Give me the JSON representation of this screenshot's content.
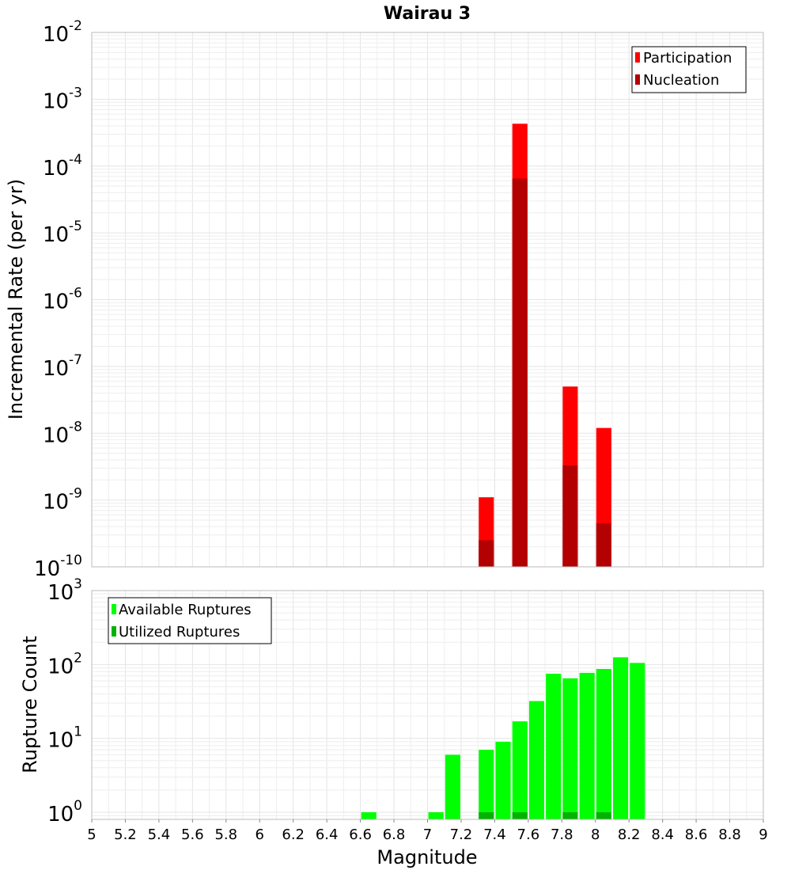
{
  "chart_data": [
    {
      "type": "bar",
      "title": "Wairau 3",
      "xlabel": "",
      "ylabel": "Incremental Rate (per yr)",
      "y_scale": "log",
      "ylim": [
        1e-10,
        0.01
      ],
      "y_ticks": [
        {
          "base": "10",
          "exp": "-2"
        },
        {
          "base": "10",
          "exp": "-3"
        },
        {
          "base": "10",
          "exp": "-4"
        },
        {
          "base": "10",
          "exp": "-5"
        },
        {
          "base": "10",
          "exp": "-6"
        },
        {
          "base": "10",
          "exp": "-7"
        },
        {
          "base": "10",
          "exp": "-8"
        },
        {
          "base": "10",
          "exp": "-9"
        },
        {
          "base": "10",
          "exp": "-10"
        }
      ],
      "xlim": [
        5,
        9
      ],
      "grid": true,
      "legend_position": "top-right",
      "series": [
        {
          "name": "Participation",
          "color": "#ff0000",
          "x": [
            7.35,
            7.55,
            7.85,
            8.05
          ],
          "values": [
            1.1e-09,
            0.00043,
            5e-08,
            1.2e-08
          ]
        },
        {
          "name": "Nucleation",
          "color": "#b30000",
          "x": [
            7.35,
            7.55,
            7.85,
            8.05
          ],
          "values": [
            2.5e-10,
            6.5e-05,
            3.3e-09,
            4.5e-10
          ]
        }
      ]
    },
    {
      "type": "bar",
      "title": "",
      "xlabel": "Magnitude",
      "ylabel": "Rupture Count",
      "y_scale": "log",
      "ylim": [
        0.8,
        1000
      ],
      "y_ticks": [
        {
          "base": "10",
          "exp": "3"
        },
        {
          "base": "10",
          "exp": "2"
        },
        {
          "base": "10",
          "exp": "1"
        },
        {
          "base": "10",
          "exp": "0"
        }
      ],
      "xlim": [
        5,
        9
      ],
      "x_ticks": [
        "5",
        "5.2",
        "5.4",
        "5.6",
        "5.8",
        "6",
        "6.2",
        "6.4",
        "6.6",
        "6.8",
        "7",
        "7.2",
        "7.4",
        "7.6",
        "7.8",
        "8",
        "8.2",
        "8.4",
        "8.6",
        "8.8",
        "9"
      ],
      "grid": true,
      "legend_position": "top-left",
      "series": [
        {
          "name": "Available Ruptures",
          "color": "#00ff00",
          "x": [
            6.65,
            7.05,
            7.15,
            7.35,
            7.45,
            7.55,
            7.65,
            7.75,
            7.85,
            7.95,
            8.05,
            8.15,
            8.25
          ],
          "values": [
            1,
            1,
            6,
            7,
            9,
            17,
            32,
            75,
            65,
            77,
            87,
            125,
            105
          ]
        },
        {
          "name": "Utilized Ruptures",
          "color": "#00b300",
          "x": [
            7.35,
            7.55,
            7.85,
            8.05
          ],
          "values": [
            1,
            1,
            1,
            1
          ]
        }
      ]
    }
  ]
}
